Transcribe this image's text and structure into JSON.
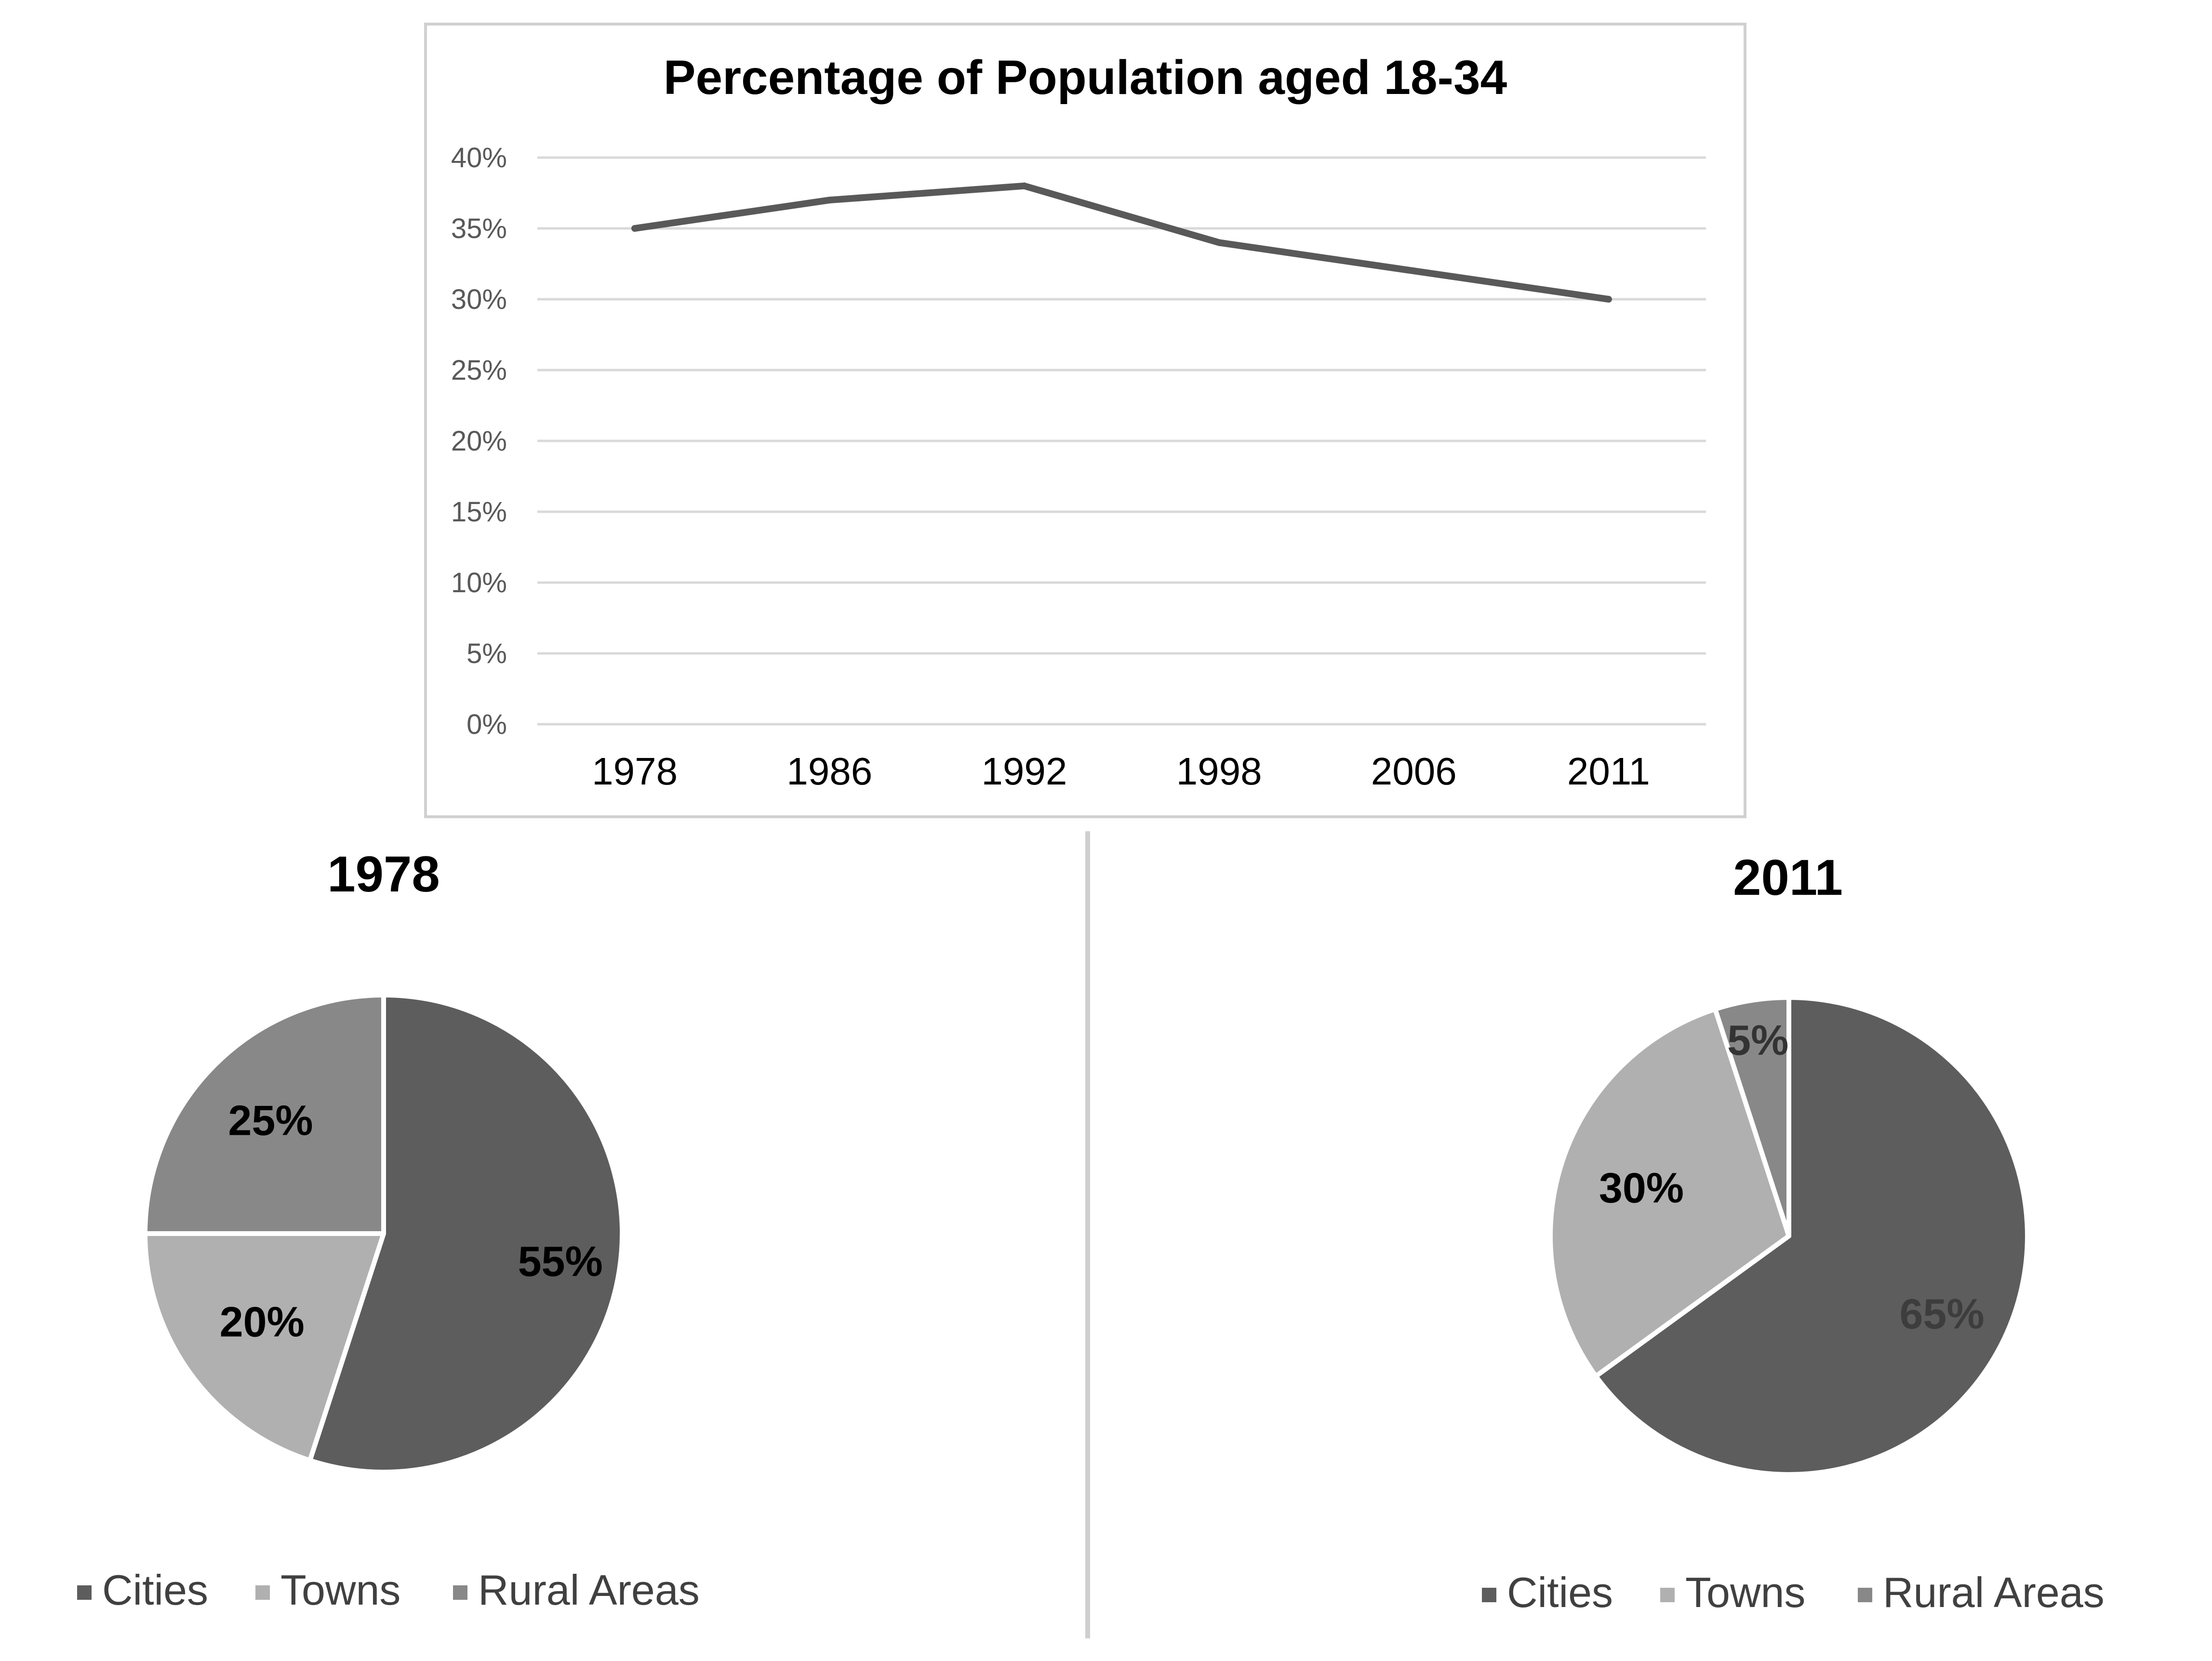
{
  "colors": {
    "cities": "#5d5d5d",
    "towns": "#b0b0b0",
    "rural": "#888888",
    "line": "#595959",
    "grid": "#d9d9d9",
    "axis_text": "#595959",
    "frame": "#d0d0d0",
    "divider": "#cfcfcf"
  },
  "chart_data": [
    {
      "type": "line",
      "title": "Percentage of Population aged 18-34",
      "xlabel": "",
      "ylabel": "",
      "x": [
        "1978",
        "1986",
        "1992",
        "1998",
        "2006",
        "2011"
      ],
      "series": [
        {
          "values": [
            35,
            37,
            38,
            34,
            32,
            30
          ]
        }
      ],
      "ylim": [
        0,
        40
      ],
      "yticks": [
        "0%",
        "5%",
        "10%",
        "15%",
        "20%",
        "25%",
        "30%",
        "35%",
        "40%"
      ],
      "grid": true,
      "legend": "none"
    },
    {
      "type": "pie",
      "title": "1978",
      "categories": [
        "Cities",
        "Towns",
        "Rural Areas"
      ],
      "values": [
        55,
        20,
        25
      ],
      "labels": [
        "55%",
        "20%",
        "25%"
      ],
      "legend": "bottom"
    },
    {
      "type": "pie",
      "title": "2011",
      "categories": [
        "Cities",
        "Towns",
        "Rural Areas"
      ],
      "values": [
        65,
        30,
        5
      ],
      "labels": [
        "65%",
        "30%",
        "5%"
      ],
      "legend": "bottom"
    }
  ]
}
